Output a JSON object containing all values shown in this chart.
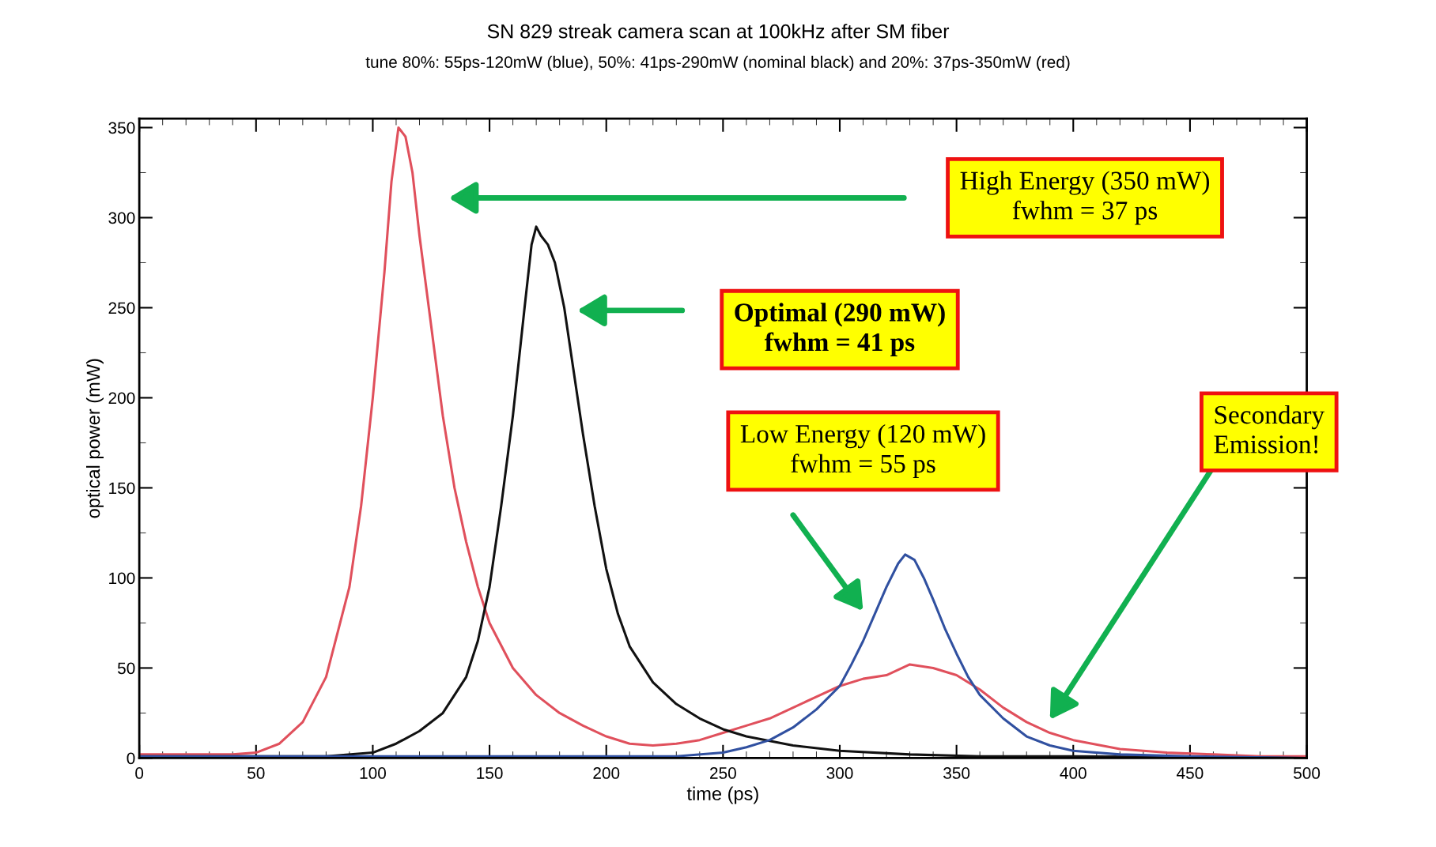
{
  "chart_data": {
    "type": "line",
    "title": "SN 829 streak camera scan at 100kHz after SM fiber",
    "subtitle": "tune 80%: 55ps-120mW (blue), 50%: 41ps-290mW (nominal black) and 20%: 37ps-350mW (red)",
    "xlabel": "time (ps)",
    "ylabel": "optical power (mW)",
    "xlim": [
      0,
      500
    ],
    "xticks": [
      0,
      50,
      100,
      150,
      200,
      250,
      300,
      350,
      400,
      450,
      500
    ],
    "ylim": [
      0,
      355
    ],
    "yticks": [
      0,
      50,
      100,
      150,
      200,
      250,
      300,
      350
    ],
    "grid": false,
    "legend": false,
    "marker": "none",
    "line_style": "solid",
    "series": [
      {
        "color": "#e0505c",
        "x": [
          0,
          20,
          40,
          50,
          60,
          70,
          80,
          90,
          95,
          100,
          105,
          108,
          111,
          114,
          117,
          120,
          125,
          130,
          135,
          140,
          145,
          150,
          160,
          170,
          180,
          190,
          200,
          210,
          220,
          230,
          240,
          250,
          260,
          270,
          280,
          290,
          300,
          310,
          320,
          330,
          340,
          350,
          360,
          370,
          380,
          390,
          400,
          420,
          440,
          460,
          480,
          500
        ],
        "values": [
          2,
          2,
          2,
          3,
          8,
          20,
          45,
          95,
          140,
          200,
          270,
          320,
          350,
          345,
          325,
          290,
          240,
          190,
          150,
          120,
          95,
          75,
          50,
          35,
          25,
          18,
          12,
          8,
          7,
          8,
          10,
          14,
          18,
          22,
          28,
          34,
          40,
          44,
          46,
          52,
          50,
          46,
          38,
          28,
          20,
          14,
          10,
          5,
          3,
          2,
          1,
          1
        ]
      },
      {
        "color": "#111111",
        "x": [
          0,
          80,
          100,
          110,
          120,
          130,
          140,
          145,
          150,
          155,
          160,
          165,
          168,
          170,
          172,
          175,
          178,
          182,
          186,
          190,
          195,
          200,
          205,
          210,
          220,
          230,
          240,
          250,
          260,
          280,
          300,
          330,
          360,
          400,
          500
        ],
        "values": [
          1,
          1,
          3,
          8,
          15,
          25,
          45,
          65,
          95,
          140,
          190,
          250,
          285,
          295,
          290,
          285,
          275,
          250,
          215,
          180,
          140,
          105,
          80,
          62,
          42,
          30,
          22,
          16,
          12,
          7,
          4,
          2,
          1,
          1,
          0
        ]
      },
      {
        "color": "#3050a0",
        "x": [
          0,
          200,
          230,
          250,
          260,
          270,
          280,
          290,
          300,
          305,
          310,
          315,
          320,
          325,
          328,
          332,
          336,
          340,
          345,
          350,
          355,
          360,
          370,
          380,
          390,
          400,
          420,
          450,
          500
        ],
        "values": [
          1,
          1,
          1,
          3,
          6,
          10,
          17,
          27,
          40,
          52,
          65,
          80,
          95,
          108,
          113,
          110,
          100,
          88,
          72,
          58,
          45,
          35,
          22,
          12,
          7,
          4,
          2,
          1,
          0
        ]
      }
    ],
    "annotations": [
      "High Energy (350 mW)\nfwhm = 37 ps",
      "Optimal (290 mW)\nfwhm = 41 ps",
      "Low Energy (120 mW)\nfwhm = 55 ps",
      "Secondary\nEmission!"
    ]
  }
}
